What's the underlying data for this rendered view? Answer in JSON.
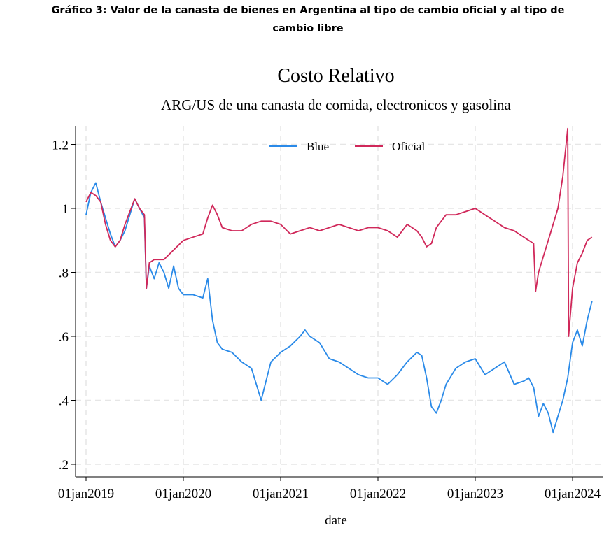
{
  "caption_line1": "Gráfico 3: Valor de la canasta de bienes en Argentina al tipo de cambio oficial y al tipo de",
  "caption_line2": "cambio libre",
  "chart_data": {
    "type": "line",
    "title": "Costo Relativo",
    "subtitle": "ARG/US de una canasta de comida, electronicos y gasolina",
    "xlabel": "date",
    "ylabel": "",
    "xlim": [
      2018.9,
      2024.3
    ],
    "ylim": [
      0.17,
      1.3
    ],
    "grid": true,
    "legend_position": "top-center",
    "x_ticks": [
      {
        "value": 2019,
        "label": "01jan2019"
      },
      {
        "value": 2020,
        "label": "01jan2020"
      },
      {
        "value": 2021,
        "label": "01jan2021"
      },
      {
        "value": 2022,
        "label": "01jan2022"
      },
      {
        "value": 2023,
        "label": "01jan2023"
      },
      {
        "value": 2024,
        "label": "01jan2024"
      }
    ],
    "y_ticks": [
      {
        "value": 0.2,
        "label": ".2"
      },
      {
        "value": 0.4,
        "label": ".4"
      },
      {
        "value": 0.6,
        "label": ".6"
      },
      {
        "value": 0.8,
        "label": ".8"
      },
      {
        "value": 1.0,
        "label": "1"
      },
      {
        "value": 1.2,
        "label": "1.2"
      }
    ],
    "series": [
      {
        "name": "Blue",
        "color": "#2a8ae8",
        "x": [
          2019.0,
          2019.05,
          2019.1,
          2019.15,
          2019.2,
          2019.25,
          2019.3,
          2019.35,
          2019.4,
          2019.5,
          2019.55,
          2019.6,
          2019.62,
          2019.65,
          2019.7,
          2019.75,
          2019.8,
          2019.85,
          2019.9,
          2019.95,
          2020.0,
          2020.1,
          2020.2,
          2020.25,
          2020.3,
          2020.35,
          2020.4,
          2020.5,
          2020.6,
          2020.7,
          2020.8,
          2020.85,
          2020.9,
          2021.0,
          2021.1,
          2021.2,
          2021.25,
          2021.3,
          2021.4,
          2021.5,
          2021.6,
          2021.7,
          2021.8,
          2021.9,
          2022.0,
          2022.1,
          2022.2,
          2022.3,
          2022.4,
          2022.45,
          2022.5,
          2022.55,
          2022.6,
          2022.65,
          2022.7,
          2022.8,
          2022.9,
          2023.0,
          2023.1,
          2023.2,
          2023.3,
          2023.4,
          2023.5,
          2023.55,
          2023.6,
          2023.65,
          2023.7,
          2023.75,
          2023.8,
          2023.85,
          2023.9,
          2023.95,
          2024.0,
          2024.05,
          2024.1,
          2024.15,
          2024.2
        ],
        "y": [
          0.98,
          1.05,
          1.08,
          1.02,
          0.97,
          0.92,
          0.88,
          0.9,
          0.93,
          1.03,
          1.0,
          0.97,
          0.75,
          0.82,
          0.78,
          0.83,
          0.8,
          0.75,
          0.82,
          0.75,
          0.73,
          0.73,
          0.72,
          0.78,
          0.65,
          0.58,
          0.56,
          0.55,
          0.52,
          0.5,
          0.4,
          0.46,
          0.52,
          0.55,
          0.57,
          0.6,
          0.62,
          0.6,
          0.58,
          0.53,
          0.52,
          0.5,
          0.48,
          0.47,
          0.47,
          0.45,
          0.48,
          0.52,
          0.55,
          0.54,
          0.47,
          0.38,
          0.36,
          0.4,
          0.45,
          0.5,
          0.52,
          0.53,
          0.48,
          0.5,
          0.52,
          0.45,
          0.46,
          0.47,
          0.44,
          0.35,
          0.39,
          0.36,
          0.3,
          0.35,
          0.4,
          0.47,
          0.58,
          0.62,
          0.57,
          0.65,
          0.71
        ]
      },
      {
        "name": "Oficial",
        "color": "#d0285a",
        "x": [
          2019.0,
          2019.05,
          2019.1,
          2019.15,
          2019.2,
          2019.25,
          2019.3,
          2019.35,
          2019.4,
          2019.5,
          2019.55,
          2019.6,
          2019.62,
          2019.65,
          2019.7,
          2019.8,
          2019.9,
          2020.0,
          2020.1,
          2020.2,
          2020.25,
          2020.3,
          2020.35,
          2020.4,
          2020.5,
          2020.6,
          2020.7,
          2020.8,
          2020.9,
          2021.0,
          2021.1,
          2021.2,
          2021.3,
          2021.4,
          2021.5,
          2021.6,
          2021.7,
          2021.8,
          2021.9,
          2022.0,
          2022.1,
          2022.2,
          2022.3,
          2022.4,
          2022.45,
          2022.5,
          2022.55,
          2022.6,
          2022.7,
          2022.8,
          2022.9,
          2023.0,
          2023.1,
          2023.2,
          2023.3,
          2023.4,
          2023.5,
          2023.6,
          2023.62,
          2023.65,
          2023.7,
          2023.75,
          2023.8,
          2023.85,
          2023.9,
          2023.95,
          2023.96,
          2024.0,
          2024.05,
          2024.1,
          2024.15,
          2024.2
        ],
        "y": [
          1.02,
          1.05,
          1.04,
          1.02,
          0.95,
          0.9,
          0.88,
          0.9,
          0.95,
          1.03,
          1.0,
          0.98,
          0.75,
          0.83,
          0.84,
          0.84,
          0.87,
          0.9,
          0.91,
          0.92,
          0.97,
          1.01,
          0.98,
          0.94,
          0.93,
          0.93,
          0.95,
          0.96,
          0.96,
          0.95,
          0.92,
          0.93,
          0.94,
          0.93,
          0.94,
          0.95,
          0.94,
          0.93,
          0.94,
          0.94,
          0.93,
          0.91,
          0.95,
          0.93,
          0.91,
          0.88,
          0.89,
          0.94,
          0.98,
          0.98,
          0.99,
          1.0,
          0.98,
          0.96,
          0.94,
          0.93,
          0.91,
          0.89,
          0.74,
          0.8,
          0.85,
          0.9,
          0.95,
          1.0,
          1.1,
          1.25,
          0.6,
          0.75,
          0.83,
          0.86,
          0.9,
          0.91
        ]
      }
    ]
  }
}
